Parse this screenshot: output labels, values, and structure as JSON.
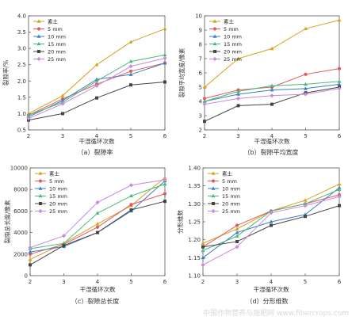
{
  "figure": {
    "watermark": "中国作物营养与施肥网 www.fibercrops.com",
    "series_colors": [
      "#d6a21f",
      "#e05a5a",
      "#3f7fc4",
      "#4cb97a",
      "#444444",
      "#c98ae0"
    ]
  },
  "chart_data": [
    {
      "type": "line",
      "caption": "（a）裂隙率",
      "xlabel": "干湿循环次数",
      "ylabel": "裂隙率/%",
      "x": [
        2,
        3,
        4,
        5,
        6
      ],
      "xlim": [
        2,
        6
      ],
      "ylim": [
        0.5,
        4.0
      ],
      "yticks": [
        "0.5",
        "1.0",
        "1.5",
        "2.0",
        "2.5",
        "3.0",
        "3.5",
        "4.0"
      ],
      "xticks": [
        "2",
        "3",
        "4",
        "5",
        "6"
      ],
      "legend_position": "top-left",
      "series": [
        {
          "name": "素土",
          "values": [
            1.0,
            1.55,
            2.5,
            3.2,
            3.6
          ]
        },
        {
          "name": "5 mm",
          "values": [
            0.95,
            1.45,
            1.9,
            2.3,
            2.55
          ]
        },
        {
          "name": "10 mm",
          "values": [
            0.9,
            1.4,
            2.05,
            2.2,
            2.55
          ]
        },
        {
          "name": "15 mm",
          "values": [
            0.95,
            1.35,
            2.0,
            2.6,
            2.8
          ]
        },
        {
          "name": "20 mm",
          "values": [
            0.8,
            1.0,
            1.48,
            1.88,
            1.97
          ]
        },
        {
          "name": "25 mm",
          "values": [
            0.85,
            1.3,
            1.85,
            2.45,
            2.7
          ]
        }
      ]
    },
    {
      "type": "line",
      "caption": "（b）裂隙平均宽度",
      "xlabel": "干湿循环次数",
      "ylabel": "裂隙平均宽度/像素",
      "x": [
        2,
        3,
        4,
        5,
        6
      ],
      "xlim": [
        2,
        6
      ],
      "ylim": [
        2,
        10
      ],
      "yticks": [
        "2",
        "3",
        "4",
        "5",
        "6",
        "7",
        "8",
        "9",
        "10"
      ],
      "xticks": [
        "2",
        "3",
        "4",
        "5",
        "6"
      ],
      "legend_position": "top-left",
      "series": [
        {
          "name": "素土",
          "values": [
            5.0,
            7.0,
            7.7,
            9.1,
            9.7
          ]
        },
        {
          "name": "5 mm",
          "values": [
            4.2,
            4.8,
            5.0,
            5.9,
            6.3
          ]
        },
        {
          "name": "10 mm",
          "values": [
            4.0,
            4.5,
            4.8,
            4.9,
            5.2
          ]
        },
        {
          "name": "15 mm",
          "values": [
            4.0,
            4.7,
            5.1,
            5.2,
            5.4
          ]
        },
        {
          "name": "20 mm",
          "values": [
            2.6,
            3.7,
            3.8,
            4.6,
            5.0
          ]
        },
        {
          "name": "25 mm",
          "values": [
            3.8,
            4.2,
            4.4,
            4.5,
            4.9
          ]
        }
      ]
    },
    {
      "type": "line",
      "caption": "（c）裂隙总长度",
      "xlabel": "干湿循环次数",
      "ylabel": "裂隙总长度/像素",
      "x": [
        2,
        3,
        4,
        5,
        6
      ],
      "xlim": [
        2,
        6
      ],
      "ylim": [
        0,
        10000
      ],
      "yticks": [
        "0",
        "2000",
        "4000",
        "6000",
        "8000",
        "10000"
      ],
      "xticks": [
        "2",
        "3",
        "4",
        "5",
        "6"
      ],
      "legend_position": "top-left",
      "series": [
        {
          "name": "素土",
          "values": [
            1500,
            3000,
            4800,
            6500,
            9100
          ]
        },
        {
          "name": "5 mm",
          "values": [
            2000,
            2900,
            4500,
            6600,
            7600
          ]
        },
        {
          "name": "10 mm",
          "values": [
            2200,
            2700,
            4000,
            6000,
            8800
          ]
        },
        {
          "name": "15 mm",
          "values": [
            2500,
            3000,
            5800,
            7400,
            8500
          ]
        },
        {
          "name": "20 mm",
          "values": [
            1000,
            2800,
            4000,
            6100,
            6900
          ]
        },
        {
          "name": "25 mm",
          "values": [
            2600,
            3700,
            6800,
            8400,
            8900
          ]
        }
      ]
    },
    {
      "type": "line",
      "caption": "（d）分形维数",
      "xlabel": "干湿循环次数",
      "ylabel": "分形维数",
      "x": [
        2,
        3,
        4,
        5,
        6
      ],
      "xlim": [
        2,
        6
      ],
      "ylim": [
        1.1,
        1.4
      ],
      "yticks": [
        "1.10",
        "1.15",
        "1.20",
        "1.25",
        "1.30",
        "1.35",
        "1.40"
      ],
      "xticks": [
        "2",
        "3",
        "4",
        "5",
        "6"
      ],
      "legend_position": "top-left",
      "series": [
        {
          "name": "素土",
          "values": [
            1.19,
            1.23,
            1.28,
            1.31,
            1.355
          ]
        },
        {
          "name": "5 mm",
          "values": [
            1.18,
            1.24,
            1.28,
            1.3,
            1.325
          ]
        },
        {
          "name": "10 mm",
          "values": [
            1.15,
            1.22,
            1.25,
            1.27,
            1.345
          ]
        },
        {
          "name": "15 mm",
          "values": [
            1.17,
            1.21,
            1.28,
            1.3,
            1.34
          ]
        },
        {
          "name": "20 mm",
          "values": [
            1.18,
            1.195,
            1.24,
            1.265,
            1.295
          ]
        },
        {
          "name": "25 mm",
          "values": [
            1.13,
            1.18,
            1.275,
            1.295,
            1.32
          ]
        }
      ]
    }
  ]
}
